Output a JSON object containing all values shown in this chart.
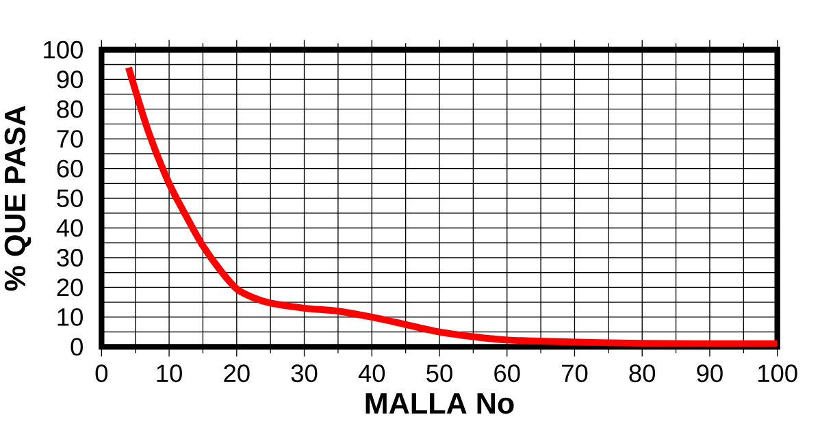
{
  "chart_data": {
    "type": "line",
    "xlabel": "MALLA No",
    "ylabel": "% QUE PASA",
    "series": [
      {
        "color": "#ff0000",
        "x": [
          4,
          7,
          10,
          13,
          15,
          17.5,
          20,
          22.5,
          25,
          30,
          35,
          40,
          45,
          50,
          55,
          60,
          70,
          80,
          90,
          100
        ],
        "values": [
          94,
          72,
          55,
          42,
          34,
          26,
          19.5,
          16.5,
          14.7,
          13,
          12,
          10,
          7.5,
          5,
          3.4,
          2.3,
          1.6,
          1.2,
          1,
          1
        ]
      }
    ],
    "xlim": [
      0,
      100
    ],
    "ylim": [
      0,
      100
    ],
    "xticks": [
      0,
      10,
      20,
      30,
      40,
      50,
      60,
      70,
      80,
      90,
      100
    ],
    "yticks": [
      0,
      10,
      20,
      30,
      40,
      50,
      60,
      70,
      80,
      90,
      100
    ],
    "grid": true,
    "marker": "none",
    "line_style": "solid"
  }
}
